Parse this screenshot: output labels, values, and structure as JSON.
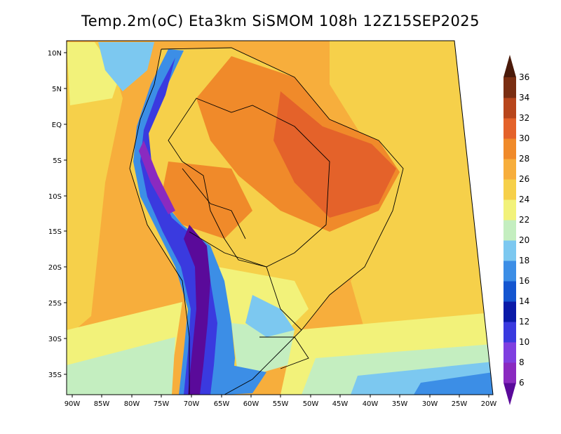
{
  "title": "Temp.2m(oC) Eta3km SiSMOM 108h 12Z15SEP2025",
  "map": {
    "variable": "Temp.2m",
    "units": "oC",
    "model": "Eta3km",
    "forecast_hour": "108h",
    "lat_ticks": [
      "10N",
      "5N",
      "EQ",
      "5S",
      "10S",
      "15S",
      "20S",
      "25S",
      "30S",
      "35S"
    ],
    "lon_ticks": [
      "90W",
      "85W",
      "80W",
      "75W",
      "70W",
      "65W",
      "60W",
      "55W",
      "50W",
      "45W",
      "40W",
      "35W",
      "30W",
      "25W",
      "20W"
    ]
  },
  "colorbar": {
    "levels": [
      6,
      8,
      10,
      12,
      14,
      16,
      18,
      20,
      22,
      24,
      26,
      28,
      30,
      32,
      34,
      36
    ],
    "labels": [
      "6",
      "8",
      "10",
      "12",
      "14",
      "16",
      "18",
      "20",
      "22",
      "24",
      "26",
      "28",
      "30",
      "32",
      "34",
      "36"
    ],
    "colors": [
      "#5a0a9a",
      "#8a2ac0",
      "#7f3fe0",
      "#3a3adf",
      "#0a1aa8",
      "#1455d0",
      "#3c8ee6",
      "#7cc8f0",
      "#c4eec0",
      "#f2f27a",
      "#f6d04a",
      "#f7ae3c",
      "#f08a2a",
      "#e4622a",
      "#b8461c",
      "#7a2e12",
      "#4a1a0a"
    ]
  }
}
